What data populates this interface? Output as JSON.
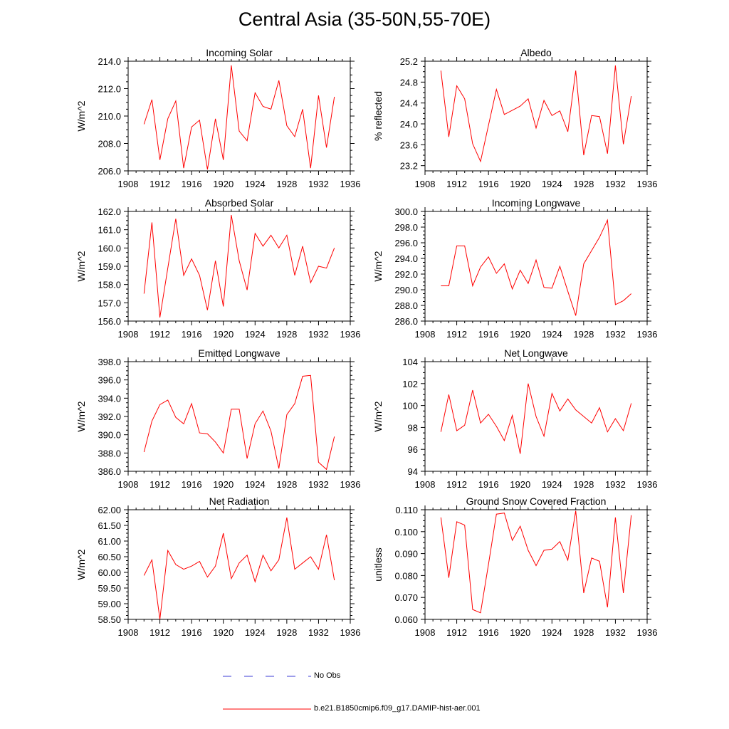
{
  "figure_title": "Central Asia (35-50N,55-70E)",
  "colors": {
    "model": "#ff0000",
    "obs": "#3b3bd6",
    "axis": "#000000"
  },
  "legend": {
    "obs_label": "No Obs",
    "model_label": "b.e21.B1850cmip6.f09_g17.DAMIP-hist-aer.001"
  },
  "chart_data": [
    {
      "type": "line",
      "title": "Incoming Solar",
      "ylabel": "W/m^2",
      "xlim": [
        1908,
        1936
      ],
      "xticks": [
        "1908",
        "1912",
        "1916",
        "1920",
        "1924",
        "1928",
        "1932",
        "1936"
      ],
      "ylim": [
        206.0,
        214.0
      ],
      "yticks": [
        "206.0",
        "208.0",
        "210.0",
        "212.0",
        "214.0"
      ],
      "x": [
        1910,
        1911,
        1912,
        1913,
        1914,
        1915,
        1916,
        1917,
        1918,
        1919,
        1920,
        1921,
        1922,
        1923,
        1924,
        1925,
        1926,
        1927,
        1928,
        1929,
        1930,
        1931,
        1932,
        1933,
        1934
      ],
      "series": [
        {
          "values": [
            209.4,
            211.2,
            206.8,
            209.8,
            211.1,
            206.2,
            209.2,
            209.7,
            206.1,
            209.8,
            206.8,
            213.7,
            208.9,
            208.2,
            211.7,
            210.7,
            210.5,
            212.6,
            209.3,
            208.5,
            210.5,
            206.2,
            211.5,
            207.7,
            211.4
          ]
        }
      ]
    },
    {
      "type": "line",
      "title": "Albedo",
      "ylabel": "% reflected",
      "xlim": [
        1908,
        1936
      ],
      "xticks": [
        "1908",
        "1912",
        "1916",
        "1920",
        "1924",
        "1928",
        "1932",
        "1936"
      ],
      "ylim": [
        23.1,
        25.2
      ],
      "yticks": [
        "23.2",
        "23.6",
        "24.0",
        "24.4",
        "24.8",
        "25.2"
      ],
      "x": [
        1910,
        1911,
        1912,
        1913,
        1914,
        1915,
        1916,
        1917,
        1918,
        1919,
        1920,
        1921,
        1922,
        1923,
        1924,
        1925,
        1926,
        1927,
        1928,
        1929,
        1930,
        1931,
        1932,
        1933,
        1934
      ],
      "series": [
        {
          "values": [
            25.02,
            23.75,
            24.73,
            24.48,
            23.62,
            23.28,
            23.97,
            24.66,
            24.18,
            24.26,
            24.34,
            24.48,
            23.92,
            24.45,
            24.16,
            24.25,
            23.85,
            25.02,
            23.4,
            24.16,
            24.14,
            23.43,
            25.12,
            23.61,
            24.53
          ]
        }
      ]
    },
    {
      "type": "line",
      "title": "Absorbed Solar",
      "ylabel": "W/m^2",
      "xlim": [
        1908,
        1936
      ],
      "xticks": [
        "1908",
        "1912",
        "1916",
        "1920",
        "1924",
        "1928",
        "1932",
        "1936"
      ],
      "ylim": [
        156.0,
        162.0
      ],
      "yticks": [
        "156.0",
        "157.0",
        "158.0",
        "159.0",
        "160.0",
        "161.0",
        "162.0"
      ],
      "x": [
        1910,
        1911,
        1912,
        1913,
        1914,
        1915,
        1916,
        1917,
        1918,
        1919,
        1920,
        1921,
        1922,
        1923,
        1924,
        1925,
        1926,
        1927,
        1928,
        1929,
        1930,
        1931,
        1932,
        1933,
        1934
      ],
      "series": [
        {
          "values": [
            157.5,
            161.4,
            156.2,
            158.9,
            161.6,
            158.5,
            159.4,
            158.5,
            156.6,
            159.3,
            156.8,
            161.8,
            159.3,
            157.7,
            160.8,
            160.1,
            160.7,
            160.0,
            160.7,
            158.5,
            160.1,
            158.1,
            159.0,
            158.9,
            160.0
          ]
        }
      ]
    },
    {
      "type": "line",
      "title": "Incoming Longwave",
      "ylabel": "W/m^2",
      "xlim": [
        1908,
        1936
      ],
      "xticks": [
        "1908",
        "1912",
        "1916",
        "1920",
        "1924",
        "1928",
        "1932",
        "1936"
      ],
      "ylim": [
        286.0,
        300.0
      ],
      "yticks": [
        "286.0",
        "288.0",
        "290.0",
        "292.0",
        "294.0",
        "296.0",
        "298.0",
        "300.0"
      ],
      "x": [
        1910,
        1911,
        1912,
        1913,
        1914,
        1915,
        1916,
        1917,
        1918,
        1919,
        1920,
        1921,
        1922,
        1923,
        1924,
        1925,
        1926,
        1927,
        1928,
        1929,
        1930,
        1931,
        1932,
        1933,
        1934
      ],
      "series": [
        {
          "values": [
            290.5,
            290.5,
            295.6,
            295.6,
            290.5,
            292.9,
            294.2,
            292.1,
            293.3,
            290.1,
            292.5,
            290.8,
            293.8,
            290.3,
            290.2,
            293.0,
            289.8,
            286.7,
            293.3,
            295.0,
            296.7,
            298.9,
            288.1,
            288.6,
            289.5
          ]
        }
      ]
    },
    {
      "type": "line",
      "title": "Emitted Longwave",
      "ylabel": "W/m^2",
      "xlim": [
        1908,
        1936
      ],
      "xticks": [
        "1908",
        "1912",
        "1916",
        "1920",
        "1924",
        "1928",
        "1932",
        "1936"
      ],
      "ylim": [
        386.0,
        398.0
      ],
      "yticks": [
        "386.0",
        "388.0",
        "390.0",
        "392.0",
        "394.0",
        "396.0",
        "398.0"
      ],
      "x": [
        1910,
        1911,
        1912,
        1913,
        1914,
        1915,
        1916,
        1917,
        1918,
        1919,
        1920,
        1921,
        1922,
        1923,
        1924,
        1925,
        1926,
        1927,
        1928,
        1929,
        1930,
        1931,
        1932,
        1933,
        1934
      ],
      "series": [
        {
          "values": [
            388.1,
            391.5,
            393.3,
            393.8,
            391.9,
            391.2,
            393.4,
            390.2,
            390.1,
            389.2,
            388.0,
            392.8,
            392.8,
            387.4,
            391.2,
            392.6,
            390.4,
            386.3,
            392.2,
            393.4,
            396.4,
            396.5,
            387.0,
            386.2,
            389.8
          ]
        }
      ]
    },
    {
      "type": "line",
      "title": "Net Longwave",
      "ylabel": "W/m^2",
      "xlim": [
        1908,
        1936
      ],
      "xticks": [
        "1908",
        "1912",
        "1916",
        "1920",
        "1924",
        "1928",
        "1932",
        "1936"
      ],
      "ylim": [
        94,
        104
      ],
      "yticks": [
        "94",
        "96",
        "98",
        "100",
        "102",
        "104"
      ],
      "x": [
        1910,
        1911,
        1912,
        1913,
        1914,
        1915,
        1916,
        1917,
        1918,
        1919,
        1920,
        1921,
        1922,
        1923,
        1924,
        1925,
        1926,
        1927,
        1928,
        1929,
        1930,
        1931,
        1932,
        1933,
        1934
      ],
      "series": [
        {
          "values": [
            97.6,
            101.0,
            97.7,
            98.2,
            101.4,
            98.4,
            99.2,
            98.1,
            96.8,
            99.1,
            95.6,
            102.0,
            99.0,
            97.2,
            101.1,
            99.5,
            100.6,
            99.6,
            99.0,
            98.4,
            99.8,
            97.6,
            98.8,
            97.7,
            100.2
          ]
        }
      ]
    },
    {
      "type": "line",
      "title": "Net Radiation",
      "ylabel": "W/m^2",
      "xlim": [
        1908,
        1936
      ],
      "xticks": [
        "1908",
        "1912",
        "1916",
        "1920",
        "1924",
        "1928",
        "1932",
        "1936"
      ],
      "ylim": [
        58.5,
        62.0
      ],
      "yticks": [
        "58.50",
        "59.00",
        "59.50",
        "60.00",
        "60.50",
        "61.00",
        "61.50",
        "62.00"
      ],
      "x": [
        1910,
        1911,
        1912,
        1913,
        1914,
        1915,
        1916,
        1917,
        1918,
        1919,
        1920,
        1921,
        1922,
        1923,
        1924,
        1925,
        1926,
        1927,
        1928,
        1929,
        1930,
        1931,
        1932,
        1933,
        1934
      ],
      "series": [
        {
          "values": [
            59.9,
            60.4,
            58.5,
            60.7,
            60.25,
            60.1,
            60.2,
            60.35,
            59.85,
            60.2,
            61.25,
            59.8,
            60.3,
            60.55,
            59.7,
            60.55,
            60.05,
            60.4,
            61.75,
            60.1,
            60.3,
            60.5,
            60.1,
            61.2,
            59.75
          ]
        }
      ]
    },
    {
      "type": "line",
      "title": "Ground Snow Covered Fraction",
      "ylabel": "unitless",
      "xlim": [
        1908,
        1936
      ],
      "xticks": [
        "1908",
        "1912",
        "1916",
        "1920",
        "1924",
        "1928",
        "1932",
        "1936"
      ],
      "ylim": [
        0.06,
        0.11
      ],
      "yticks": [
        "0.060",
        "0.070",
        "0.080",
        "0.090",
        "0.100",
        "0.110"
      ],
      "x": [
        1910,
        1911,
        1912,
        1913,
        1914,
        1915,
        1916,
        1917,
        1918,
        1919,
        1920,
        1921,
        1922,
        1923,
        1924,
        1925,
        1926,
        1927,
        1928,
        1929,
        1930,
        1931,
        1932,
        1933,
        1934
      ],
      "series": [
        {
          "values": [
            0.1065,
            0.079,
            0.1045,
            0.103,
            0.0645,
            0.063,
            0.085,
            0.108,
            0.1085,
            0.096,
            0.1025,
            0.0915,
            0.0845,
            0.0915,
            0.092,
            0.0955,
            0.087,
            0.1095,
            0.072,
            0.088,
            0.0865,
            0.0655,
            0.1065,
            0.072,
            0.1075
          ]
        }
      ]
    }
  ]
}
